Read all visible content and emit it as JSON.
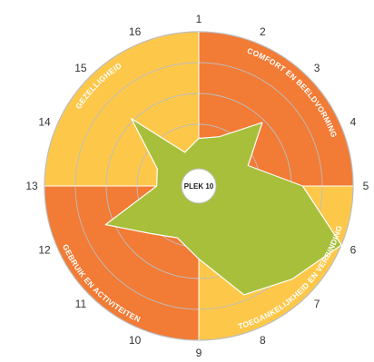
{
  "chart_data": {
    "type": "radar",
    "center_label": "PLEK 10",
    "axes": [
      "1",
      "2",
      "3",
      "4",
      "5",
      "6",
      "7",
      "8",
      "9",
      "10",
      "11",
      "12",
      "13",
      "14",
      "15",
      "16"
    ],
    "values": [
      1.7,
      1.9,
      3.2,
      1.9,
      3.7,
      5.5,
      4.7,
      4.2,
      2.6,
      2.0,
      2.4,
      3.6,
      1.5,
      1.6,
      3.4,
      1.3
    ],
    "rmax": 5.5,
    "rings": [
      1.1,
      2.2,
      3.3,
      4.4,
      5.5
    ],
    "sectors": [
      {
        "label": "COMFORT EN BEELDVORMING",
        "from_axis": 1,
        "to_axis": 5,
        "color": "#f27b35"
      },
      {
        "label": "TOEGANKELIJKHEID EN VERBINDING",
        "from_axis": 5,
        "to_axis": 9,
        "color": "#fdc84a"
      },
      {
        "label": "GEBRUIK EN ACTIVITEITEN",
        "from_axis": 9,
        "to_axis": 13,
        "color": "#f27b35"
      },
      {
        "label": "GEZELLIGHEID",
        "from_axis": 13,
        "to_axis": 1,
        "color": "#fdc84a"
      }
    ],
    "series_color": "#a7bf3a",
    "grid_color": "#bdbdbd"
  }
}
